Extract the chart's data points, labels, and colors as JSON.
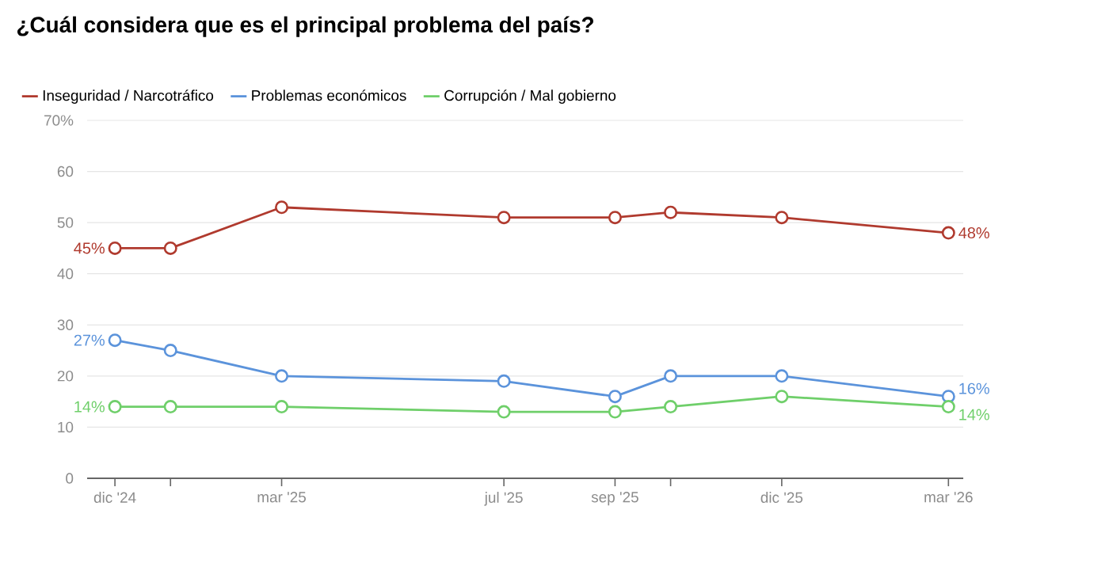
{
  "chart_data": {
    "type": "line",
    "title": "¿Cuál considera que es el principal problema del país?",
    "x": [
      "2024-12",
      "2025-01",
      "2025-03",
      "2025-07",
      "2025-09",
      "2025-10",
      "2025-12",
      "2026-03"
    ],
    "series": [
      {
        "name": "Inseguridad / Narcotráfico",
        "color": "#b03a2e",
        "values": [
          45,
          45,
          53,
          51,
          51,
          52,
          51,
          48
        ],
        "value_labels": [
          "45%",
          null,
          null,
          null,
          null,
          null,
          null,
          "48%"
        ]
      },
      {
        "name": "Problemas económicos",
        "color": "#5b93db",
        "values": [
          27,
          25,
          20,
          19,
          16,
          20,
          20,
          16
        ],
        "value_labels": [
          "27%",
          null,
          null,
          null,
          null,
          null,
          null,
          "16%"
        ]
      },
      {
        "name": "Corrupción / Mal gobierno",
        "color": "#6fcf6a",
        "values": [
          14,
          14,
          14,
          13,
          13,
          14,
          16,
          14
        ],
        "value_labels": [
          "14%",
          null,
          null,
          null,
          null,
          null,
          null,
          "14%"
        ]
      }
    ],
    "xlim": [
      "2024-11-16",
      "2026-03-09"
    ],
    "xticks": [
      {
        "value": "2024-12",
        "label": "dic '24"
      },
      {
        "value": "2025-01",
        "label": null
      },
      {
        "value": "2025-03",
        "label": "mar '25"
      },
      {
        "value": "2025-07",
        "label": "jul '25"
      },
      {
        "value": "2025-09",
        "label": "sep '25"
      },
      {
        "value": "2025-10",
        "label": null
      },
      {
        "value": "2025-12",
        "label": "dic '25"
      },
      {
        "value": "2026-03",
        "label": "mar '26"
      }
    ],
    "ylim": [
      0,
      70
    ],
    "yticks": [
      0,
      10,
      20,
      30,
      40,
      50,
      60,
      {
        "value": 70,
        "label": "70%"
      }
    ],
    "grid": "y",
    "legend": "top left",
    "marker": "circle",
    "line_style": "solid"
  }
}
